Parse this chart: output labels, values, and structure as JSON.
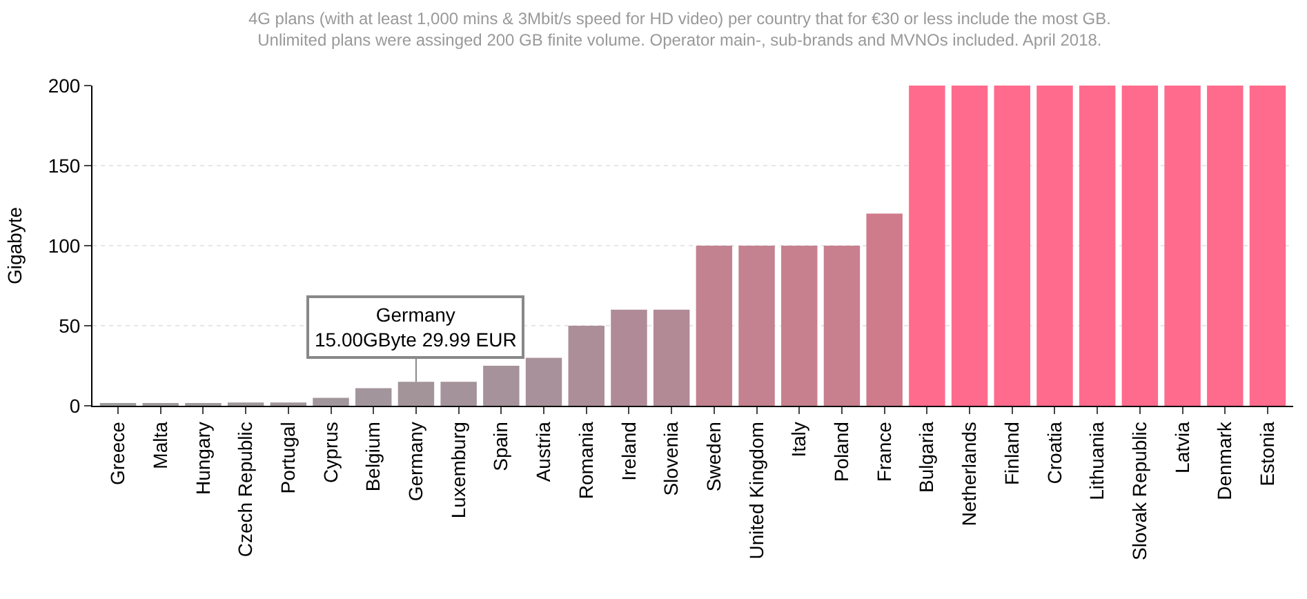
{
  "chart_data": {
    "type": "bar",
    "title": "4G plans (with at least 1,000 mins & 3Mbit/s speed for HD video) per country that for €30 or less include the most GB.",
    "subtitle": "Unlimited plans were assinged 200 GB finite volume. Operator main-, sub-brands and MVNOs included. April 2018.",
    "ylabel": "Gigabyte",
    "categories": [
      "Greece",
      "Malta",
      "Hungary",
      "Czech Republic",
      "Portugal",
      "Cyprus",
      "Belgium",
      "Germany",
      "Luxemburg",
      "Spain",
      "Austria",
      "Romania",
      "Ireland",
      "Slovenia",
      "Sweden",
      "United Kingdom",
      "Italy",
      "Poland",
      "France",
      "Bulgaria",
      "Netherlands",
      "Finland",
      "Croatia",
      "Lithuania",
      "Slovak Republic",
      "Latvia",
      "Denmark",
      "Estonia"
    ],
    "values": [
      1,
      1,
      1,
      2,
      2,
      5,
      11,
      15,
      15,
      25,
      30,
      50,
      60,
      60,
      100,
      100,
      100,
      100,
      120,
      200,
      200,
      200,
      200,
      200,
      200,
      200,
      200,
      200
    ],
    "colors": [
      "#9c9a9b",
      "#9d999b",
      "#9e999b",
      "#9f989b",
      "#a0979b",
      "#a1969b",
      "#a2959b",
      "#a3949a",
      "#a4939a",
      "#a6929a",
      "#a8919a",
      "#ac8e98",
      "#b08b97",
      "#b28a96",
      "#c28290",
      "#c4818f",
      "#c6808e",
      "#c87f8e",
      "#d07b8c",
      "#ff6b8c",
      "#ff6b8c",
      "#ff6b8c",
      "#ff6b8c",
      "#ff6b8c",
      "#ff6b8c",
      "#ff6b8c",
      "#ff6b8c",
      "#ff6b8c"
    ],
    "ylim": [
      0,
      200
    ],
    "yticks": [
      0,
      50,
      100,
      150,
      200
    ],
    "grid": "y",
    "annotations": [
      {
        "text": "Germany\n15.00GByte 29.99 EUR",
        "x": "Germany",
        "y": 15
      }
    ]
  }
}
